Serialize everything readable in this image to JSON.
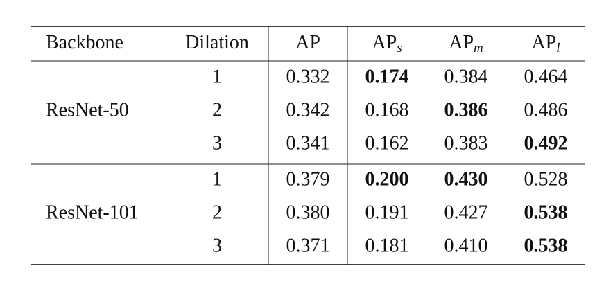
{
  "table": {
    "header": [
      {
        "text": "Backbone"
      },
      {
        "text": "Dilation"
      },
      {
        "text": "AP"
      },
      {
        "text": "AP",
        "sub": "s"
      },
      {
        "text": "AP",
        "sub": "m"
      },
      {
        "text": "AP",
        "sub": "l"
      }
    ],
    "groups": [
      {
        "backbone": "ResNet-50",
        "rows": [
          [
            {
              "text": "1"
            },
            {
              "text": "0.332"
            },
            {
              "text": "0.174",
              "bold": true
            },
            {
              "text": "0.384"
            },
            {
              "text": "0.464"
            }
          ],
          [
            {
              "text": "2"
            },
            {
              "text": "0.342"
            },
            {
              "text": "0.168"
            },
            {
              "text": "0.386",
              "bold": true
            },
            {
              "text": "0.486"
            }
          ],
          [
            {
              "text": "3"
            },
            {
              "text": "0.341"
            },
            {
              "text": "0.162"
            },
            {
              "text": "0.383"
            },
            {
              "text": "0.492",
              "bold": true
            }
          ]
        ]
      },
      {
        "backbone": "ResNet-101",
        "rows": [
          [
            {
              "text": "1"
            },
            {
              "text": "0.379"
            },
            {
              "text": "0.200",
              "bold": true
            },
            {
              "text": "0.430",
              "bold": true
            },
            {
              "text": "0.528"
            }
          ],
          [
            {
              "text": "2"
            },
            {
              "text": "0.380"
            },
            {
              "text": "0.191"
            },
            {
              "text": "0.427"
            },
            {
              "text": "0.538",
              "bold": true
            }
          ],
          [
            {
              "text": "3"
            },
            {
              "text": "0.371"
            },
            {
              "text": "0.181"
            },
            {
              "text": "0.410"
            },
            {
              "text": "0.538",
              "bold": true
            }
          ]
        ]
      }
    ]
  }
}
